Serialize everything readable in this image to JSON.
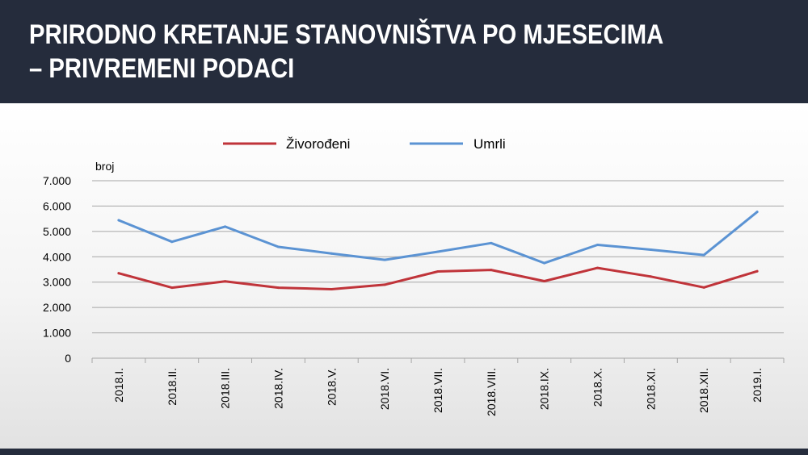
{
  "header": {
    "title_line1": "PRIRODNO KRETANJE STANOVNIŠTVA PO MJESECIMA",
    "title_line2": "– PRIVREMENI PODACI"
  },
  "colors": {
    "header_bg": "#252c3c",
    "series_zivorodeni": "#c0343a",
    "series_umrli": "#5b93d3",
    "grid": "#a6a6a6"
  },
  "chart_data": {
    "type": "line",
    "title": "",
    "ylabel": "broj",
    "xlabel": "",
    "ylim": [
      0,
      7000
    ],
    "yticks": [
      "0",
      "1.000",
      "2.000",
      "3.000",
      "4.000",
      "5.000",
      "6.000",
      "7.000"
    ],
    "yticks_values": [
      0,
      1000,
      2000,
      3000,
      4000,
      5000,
      6000,
      7000
    ],
    "grid": true,
    "legend_position": "top",
    "categories": [
      "2018.I.",
      "2018.II.",
      "2018.III.",
      "2018.IV.",
      "2018.V.",
      "2018.VI.",
      "2018.VII.",
      "2018.VIII.",
      "2018.IX.",
      "2018.X.",
      "2018.XI.",
      "2018.XII.",
      "2019.I."
    ],
    "series": [
      {
        "name": "Živorođeni",
        "color": "#c0343a",
        "values": [
          3350,
          2780,
          3030,
          2780,
          2720,
          2900,
          3420,
          3480,
          3040,
          3560,
          3220,
          2790,
          3430
        ]
      },
      {
        "name": "Umrli",
        "color": "#5b93d3",
        "values": [
          5440,
          4590,
          5190,
          4390,
          4130,
          3880,
          4200,
          4540,
          3750,
          4470,
          4280,
          4070,
          5770
        ]
      }
    ]
  }
}
